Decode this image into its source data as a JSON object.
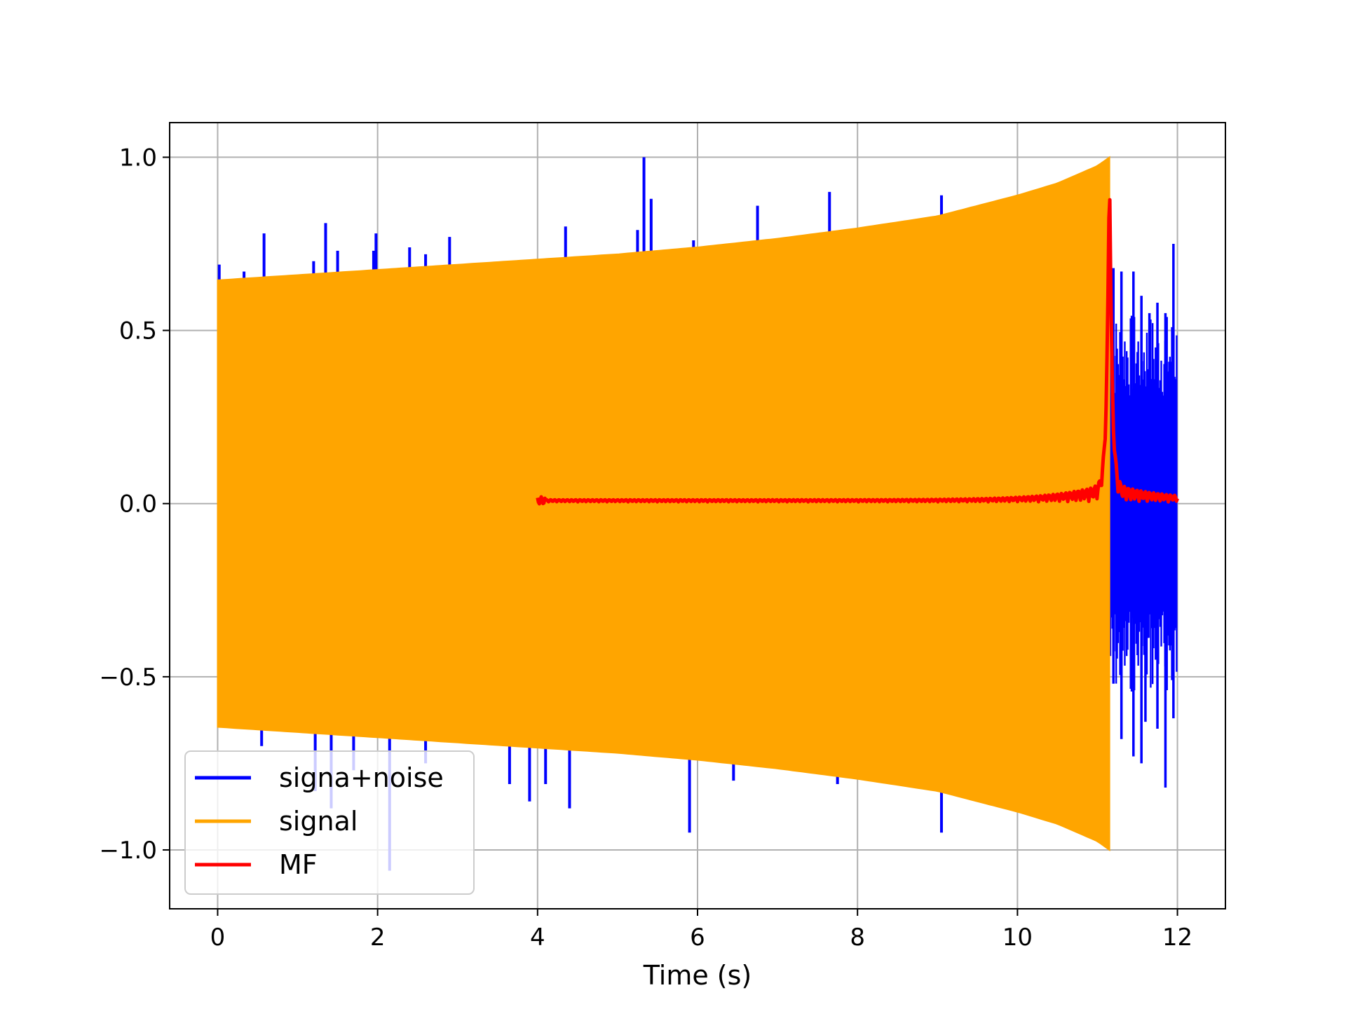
{
  "chart_data": {
    "type": "line",
    "title": "",
    "xlabel": "Time (s)",
    "ylabel": "",
    "xlim": [
      -0.6,
      12.6
    ],
    "ylim": [
      -1.17,
      1.1
    ],
    "x_ticks": [
      0,
      2,
      4,
      6,
      8,
      10,
      12
    ],
    "y_ticks": [
      1.0,
      0.5,
      0.0,
      -0.5,
      -1.0
    ],
    "x_tick_labels": [
      "0",
      "2",
      "4",
      "6",
      "8",
      "10",
      "12"
    ],
    "y_tick_labels": [
      "1.0",
      "0.5",
      "0.0",
      "−0.5",
      "−1.0"
    ],
    "grid": true,
    "legend_position": "lower-left",
    "series": [
      {
        "name": "signa+noise",
        "color": "#0000ff",
        "description_kind": "noisy chirp",
        "signal_span_s": [
          0,
          11.15
        ],
        "noise_only_span_s": [
          11.15,
          12.0
        ],
        "spikes": [
          [
            0.02,
            0.69
          ],
          [
            0.33,
            0.67
          ],
          [
            0.58,
            0.78
          ],
          [
            1.1,
            0.65
          ],
          [
            1.2,
            0.7
          ],
          [
            1.35,
            0.81
          ],
          [
            1.5,
            0.73
          ],
          [
            1.65,
            0.67
          ],
          [
            1.95,
            0.73
          ],
          [
            1.98,
            0.78
          ],
          [
            2.4,
            0.74
          ],
          [
            2.6,
            0.72
          ],
          [
            2.9,
            0.77
          ],
          [
            3.65,
            0.7
          ],
          [
            4.35,
            0.8
          ],
          [
            5.25,
            0.79
          ],
          [
            5.33,
            1.0
          ],
          [
            5.42,
            0.88
          ],
          [
            5.95,
            0.76
          ],
          [
            6.75,
            0.86
          ],
          [
            7.65,
            0.9
          ],
          [
            9.05,
            0.89
          ],
          [
            0.55,
            -0.7
          ],
          [
            1.22,
            -0.83
          ],
          [
            1.42,
            -0.88
          ],
          [
            1.7,
            -0.77
          ],
          [
            2.15,
            -1.06
          ],
          [
            2.6,
            -0.75
          ],
          [
            3.65,
            -0.81
          ],
          [
            3.9,
            -0.86
          ],
          [
            4.1,
            -0.81
          ],
          [
            4.4,
            -0.88
          ],
          [
            5.9,
            -0.95
          ],
          [
            6.45,
            -0.8
          ],
          [
            7.75,
            -0.81
          ],
          [
            9.05,
            -0.95
          ]
        ],
        "noise_tail_peaks": [
          [
            11.2,
            0.68
          ],
          [
            11.3,
            0.67
          ],
          [
            11.45,
            0.67
          ],
          [
            11.55,
            0.6
          ],
          [
            11.65,
            0.55
          ],
          [
            11.75,
            0.58
          ],
          [
            11.85,
            0.55
          ],
          [
            11.95,
            0.75
          ],
          [
            11.2,
            -0.52
          ],
          [
            11.3,
            -0.68
          ],
          [
            11.45,
            -0.73
          ],
          [
            11.55,
            -0.75
          ],
          [
            11.6,
            -0.63
          ],
          [
            11.75,
            -0.65
          ],
          [
            11.85,
            -0.82
          ],
          [
            11.95,
            -0.62
          ]
        ]
      },
      {
        "name": "signal",
        "color": "#ffa500",
        "envelope": {
          "t": [
            0,
            1,
            2,
            3,
            4,
            5,
            6,
            7,
            8,
            9,
            10,
            10.5,
            11,
            11.15
          ],
          "amp": [
            0.645,
            0.66,
            0.675,
            0.69,
            0.705,
            0.72,
            0.74,
            0.765,
            0.795,
            0.83,
            0.89,
            0.925,
            0.975,
            1.0
          ]
        }
      },
      {
        "name": "MF",
        "color": "#ff0000",
        "t_start": 4.0,
        "t_end": 12.0,
        "peak": [
          11.15,
          1.0
        ],
        "baseline": 0.005
      }
    ]
  }
}
